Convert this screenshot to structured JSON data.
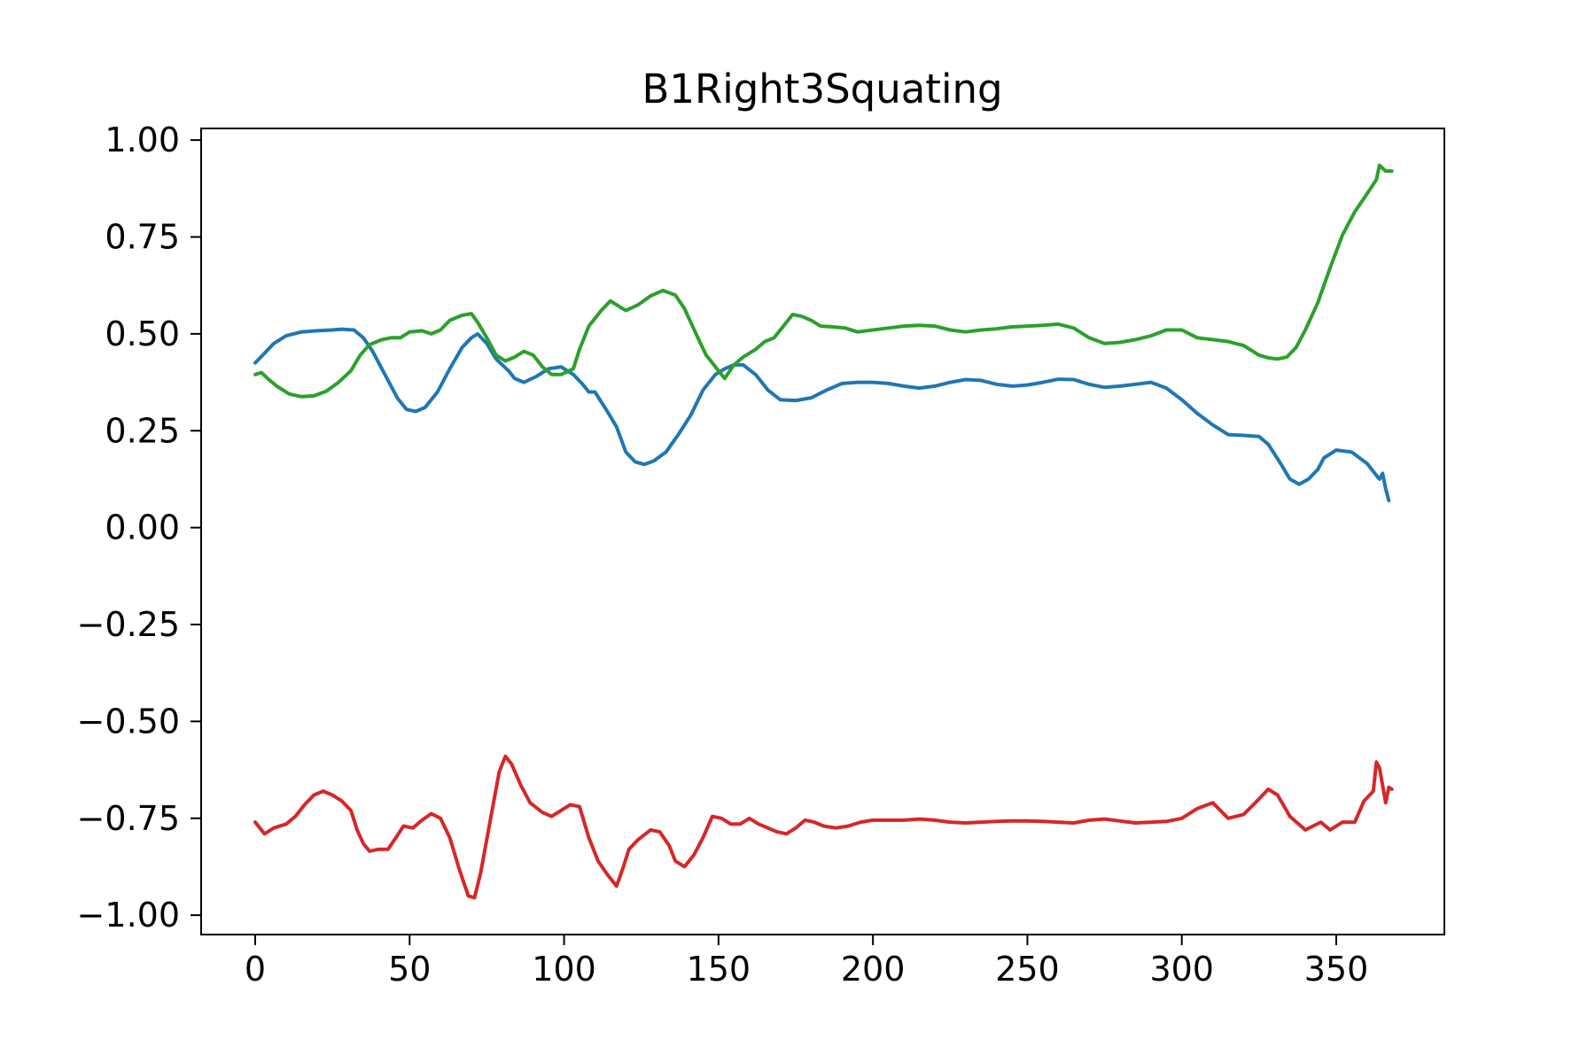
{
  "chart_data": {
    "type": "line",
    "title": "B1Right3Squating",
    "xlabel": "",
    "ylabel": "",
    "xlim": [
      -17.5,
      385
    ],
    "ylim": [
      -1.05,
      1.03
    ],
    "x_ticks": [
      0,
      50,
      100,
      150,
      200,
      250,
      300,
      350
    ],
    "x_tick_labels": [
      "0",
      "50",
      "100",
      "150",
      "200",
      "250",
      "300",
      "350"
    ],
    "y_ticks": [
      1.0,
      0.75,
      0.5,
      0.25,
      0.0,
      -0.25,
      -0.5,
      -0.75,
      -1.0
    ],
    "y_tick_labels": [
      "1.00",
      "0.75",
      "0.50",
      "0.25",
      "0.00",
      "−0.25",
      "−0.50",
      "−0.75",
      "−1.00"
    ],
    "grid": false,
    "legend": "none",
    "series": [
      {
        "color": "#1f77b4",
        "points": [
          [
            0,
            0.425
          ],
          [
            3,
            0.45
          ],
          [
            6,
            0.475
          ],
          [
            10,
            0.495
          ],
          [
            15,
            0.505
          ],
          [
            20,
            0.508
          ],
          [
            25,
            0.51
          ],
          [
            28,
            0.512
          ],
          [
            32,
            0.51
          ],
          [
            35,
            0.49
          ],
          [
            38,
            0.455
          ],
          [
            42,
            0.395
          ],
          [
            46,
            0.335
          ],
          [
            49,
            0.305
          ],
          [
            52,
            0.3
          ],
          [
            55,
            0.31
          ],
          [
            59,
            0.35
          ],
          [
            63,
            0.41
          ],
          [
            67,
            0.465
          ],
          [
            70,
            0.49
          ],
          [
            72,
            0.5
          ],
          [
            75,
            0.475
          ],
          [
            78,
            0.435
          ],
          [
            82,
            0.405
          ],
          [
            84,
            0.385
          ],
          [
            87,
            0.375
          ],
          [
            91,
            0.39
          ],
          [
            95,
            0.41
          ],
          [
            99,
            0.415
          ],
          [
            103,
            0.395
          ],
          [
            106,
            0.37
          ],
          [
            108,
            0.35
          ],
          [
            110,
            0.35
          ],
          [
            114,
            0.3
          ],
          [
            117,
            0.26
          ],
          [
            120,
            0.195
          ],
          [
            123,
            0.17
          ],
          [
            126,
            0.163
          ],
          [
            129,
            0.172
          ],
          [
            133,
            0.195
          ],
          [
            137,
            0.24
          ],
          [
            141,
            0.29
          ],
          [
            145,
            0.355
          ],
          [
            149,
            0.395
          ],
          [
            152,
            0.41
          ],
          [
            155,
            0.42
          ],
          [
            158,
            0.42
          ],
          [
            162,
            0.395
          ],
          [
            166,
            0.355
          ],
          [
            170,
            0.33
          ],
          [
            175,
            0.328
          ],
          [
            180,
            0.335
          ],
          [
            185,
            0.355
          ],
          [
            190,
            0.372
          ],
          [
            195,
            0.375
          ],
          [
            200,
            0.375
          ],
          [
            205,
            0.372
          ],
          [
            210,
            0.365
          ],
          [
            215,
            0.36
          ],
          [
            220,
            0.365
          ],
          [
            225,
            0.375
          ],
          [
            230,
            0.382
          ],
          [
            235,
            0.38
          ],
          [
            240,
            0.37
          ],
          [
            245,
            0.365
          ],
          [
            250,
            0.368
          ],
          [
            255,
            0.375
          ],
          [
            260,
            0.383
          ],
          [
            265,
            0.382
          ],
          [
            270,
            0.37
          ],
          [
            275,
            0.362
          ],
          [
            280,
            0.365
          ],
          [
            285,
            0.37
          ],
          [
            290,
            0.375
          ],
          [
            295,
            0.36
          ],
          [
            300,
            0.33
          ],
          [
            305,
            0.295
          ],
          [
            310,
            0.265
          ],
          [
            315,
            0.24
          ],
          [
            320,
            0.238
          ],
          [
            325,
            0.235
          ],
          [
            328,
            0.215
          ],
          [
            332,
            0.165
          ],
          [
            335,
            0.125
          ],
          [
            338,
            0.112
          ],
          [
            341,
            0.125
          ],
          [
            344,
            0.15
          ],
          [
            346,
            0.18
          ],
          [
            350,
            0.2
          ],
          [
            355,
            0.195
          ],
          [
            360,
            0.165
          ],
          [
            363,
            0.135
          ],
          [
            364,
            0.125
          ],
          [
            365,
            0.14
          ],
          [
            366,
            0.1
          ],
          [
            367,
            0.07
          ]
        ]
      },
      {
        "color": "#2ca02c",
        "points": [
          [
            0,
            0.395
          ],
          [
            2,
            0.4
          ],
          [
            4,
            0.385
          ],
          [
            7,
            0.365
          ],
          [
            11,
            0.345
          ],
          [
            15,
            0.338
          ],
          [
            19,
            0.34
          ],
          [
            23,
            0.352
          ],
          [
            27,
            0.375
          ],
          [
            31,
            0.405
          ],
          [
            34,
            0.445
          ],
          [
            37,
            0.472
          ],
          [
            41,
            0.485
          ],
          [
            44,
            0.49
          ],
          [
            47,
            0.49
          ],
          [
            50,
            0.505
          ],
          [
            54,
            0.508
          ],
          [
            57,
            0.5
          ],
          [
            60,
            0.51
          ],
          [
            63,
            0.535
          ],
          [
            67,
            0.548
          ],
          [
            70,
            0.552
          ],
          [
            72,
            0.53
          ],
          [
            75,
            0.49
          ],
          [
            78,
            0.445
          ],
          [
            81,
            0.43
          ],
          [
            84,
            0.44
          ],
          [
            87,
            0.455
          ],
          [
            90,
            0.445
          ],
          [
            93,
            0.415
          ],
          [
            96,
            0.395
          ],
          [
            99,
            0.395
          ],
          [
            103,
            0.41
          ],
          [
            105,
            0.46
          ],
          [
            108,
            0.52
          ],
          [
            112,
            0.56
          ],
          [
            115,
            0.585
          ],
          [
            118,
            0.57
          ],
          [
            120,
            0.56
          ],
          [
            124,
            0.575
          ],
          [
            128,
            0.598
          ],
          [
            132,
            0.612
          ],
          [
            136,
            0.6
          ],
          [
            139,
            0.565
          ],
          [
            143,
            0.495
          ],
          [
            146,
            0.445
          ],
          [
            149,
            0.415
          ],
          [
            152,
            0.385
          ],
          [
            155,
            0.42
          ],
          [
            158,
            0.44
          ],
          [
            162,
            0.46
          ],
          [
            165,
            0.48
          ],
          [
            168,
            0.49
          ],
          [
            171,
            0.52
          ],
          [
            174,
            0.55
          ],
          [
            177,
            0.545
          ],
          [
            180,
            0.535
          ],
          [
            183,
            0.52
          ],
          [
            187,
            0.518
          ],
          [
            191,
            0.515
          ],
          [
            195,
            0.505
          ],
          [
            200,
            0.51
          ],
          [
            205,
            0.515
          ],
          [
            210,
            0.52
          ],
          [
            215,
            0.522
          ],
          [
            220,
            0.52
          ],
          [
            225,
            0.51
          ],
          [
            230,
            0.505
          ],
          [
            235,
            0.51
          ],
          [
            240,
            0.513
          ],
          [
            245,
            0.518
          ],
          [
            250,
            0.52
          ],
          [
            255,
            0.522
          ],
          [
            260,
            0.525
          ],
          [
            265,
            0.515
          ],
          [
            270,
            0.49
          ],
          [
            275,
            0.475
          ],
          [
            280,
            0.478
          ],
          [
            285,
            0.485
          ],
          [
            290,
            0.495
          ],
          [
            295,
            0.51
          ],
          [
            300,
            0.51
          ],
          [
            305,
            0.49
          ],
          [
            310,
            0.485
          ],
          [
            315,
            0.48
          ],
          [
            320,
            0.47
          ],
          [
            325,
            0.445
          ],
          [
            328,
            0.438
          ],
          [
            331,
            0.435
          ],
          [
            334,
            0.44
          ],
          [
            337,
            0.465
          ],
          [
            340,
            0.51
          ],
          [
            344,
            0.58
          ],
          [
            348,
            0.67
          ],
          [
            352,
            0.755
          ],
          [
            356,
            0.815
          ],
          [
            360,
            0.862
          ],
          [
            363,
            0.898
          ],
          [
            364,
            0.935
          ],
          [
            366,
            0.92
          ],
          [
            368,
            0.92
          ]
        ]
      },
      {
        "color": "#d62728",
        "points": [
          [
            0,
            -0.76
          ],
          [
            3,
            -0.79
          ],
          [
            6,
            -0.775
          ],
          [
            10,
            -0.765
          ],
          [
            13,
            -0.745
          ],
          [
            16,
            -0.715
          ],
          [
            19,
            -0.69
          ],
          [
            22,
            -0.68
          ],
          [
            25,
            -0.69
          ],
          [
            28,
            -0.705
          ],
          [
            31,
            -0.73
          ],
          [
            33,
            -0.78
          ],
          [
            35,
            -0.815
          ],
          [
            37,
            -0.835
          ],
          [
            40,
            -0.83
          ],
          [
            43,
            -0.83
          ],
          [
            46,
            -0.795
          ],
          [
            48,
            -0.77
          ],
          [
            51,
            -0.775
          ],
          [
            54,
            -0.755
          ],
          [
            57,
            -0.738
          ],
          [
            60,
            -0.75
          ],
          [
            63,
            -0.8
          ],
          [
            66,
            -0.88
          ],
          [
            69,
            -0.95
          ],
          [
            71,
            -0.955
          ],
          [
            73,
            -0.89
          ],
          [
            76,
            -0.76
          ],
          [
            79,
            -0.63
          ],
          [
            81,
            -0.59
          ],
          [
            83,
            -0.61
          ],
          [
            86,
            -0.665
          ],
          [
            89,
            -0.71
          ],
          [
            93,
            -0.735
          ],
          [
            96,
            -0.745
          ],
          [
            99,
            -0.73
          ],
          [
            102,
            -0.715
          ],
          [
            105,
            -0.72
          ],
          [
            108,
            -0.8
          ],
          [
            111,
            -0.86
          ],
          [
            114,
            -0.895
          ],
          [
            117,
            -0.925
          ],
          [
            119,
            -0.88
          ],
          [
            121,
            -0.83
          ],
          [
            124,
            -0.805
          ],
          [
            128,
            -0.78
          ],
          [
            131,
            -0.785
          ],
          [
            134,
            -0.82
          ],
          [
            136,
            -0.86
          ],
          [
            139,
            -0.875
          ],
          [
            142,
            -0.845
          ],
          [
            145,
            -0.8
          ],
          [
            148,
            -0.745
          ],
          [
            151,
            -0.75
          ],
          [
            154,
            -0.765
          ],
          [
            157,
            -0.765
          ],
          [
            160,
            -0.75
          ],
          [
            163,
            -0.765
          ],
          [
            166,
            -0.775
          ],
          [
            169,
            -0.785
          ],
          [
            172,
            -0.79
          ],
          [
            175,
            -0.775
          ],
          [
            178,
            -0.755
          ],
          [
            181,
            -0.76
          ],
          [
            184,
            -0.77
          ],
          [
            188,
            -0.775
          ],
          [
            192,
            -0.77
          ],
          [
            196,
            -0.76
          ],
          [
            200,
            -0.755
          ],
          [
            205,
            -0.755
          ],
          [
            210,
            -0.755
          ],
          [
            215,
            -0.752
          ],
          [
            220,
            -0.755
          ],
          [
            225,
            -0.76
          ],
          [
            230,
            -0.762
          ],
          [
            235,
            -0.76
          ],
          [
            240,
            -0.758
          ],
          [
            245,
            -0.757
          ],
          [
            250,
            -0.757
          ],
          [
            255,
            -0.758
          ],
          [
            260,
            -0.76
          ],
          [
            265,
            -0.762
          ],
          [
            270,
            -0.755
          ],
          [
            275,
            -0.752
          ],
          [
            280,
            -0.757
          ],
          [
            285,
            -0.762
          ],
          [
            290,
            -0.76
          ],
          [
            295,
            -0.758
          ],
          [
            300,
            -0.75
          ],
          [
            305,
            -0.725
          ],
          [
            310,
            -0.71
          ],
          [
            315,
            -0.75
          ],
          [
            320,
            -0.74
          ],
          [
            325,
            -0.7
          ],
          [
            328,
            -0.675
          ],
          [
            331,
            -0.69
          ],
          [
            335,
            -0.745
          ],
          [
            340,
            -0.78
          ],
          [
            345,
            -0.76
          ],
          [
            348,
            -0.78
          ],
          [
            352,
            -0.76
          ],
          [
            356,
            -0.76
          ],
          [
            359,
            -0.705
          ],
          [
            362,
            -0.68
          ],
          [
            363,
            -0.605
          ],
          [
            364,
            -0.62
          ],
          [
            366,
            -0.71
          ],
          [
            367,
            -0.67
          ],
          [
            368,
            -0.675
          ]
        ]
      }
    ]
  }
}
